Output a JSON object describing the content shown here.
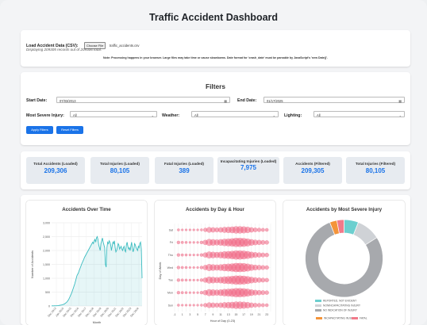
{
  "title": "Traffic Accident Dashboard",
  "load": {
    "label": "Load Accident Data (CSV):",
    "button": "Choose File",
    "filename": "traffic_accidents.csv",
    "status": "Displaying 209305 records out of 209306 total.",
    "note": "Note: Processing happens in your browser. Large files may take time or cause slowdowns. Date format for 'crash_date' must be parsable by JavaScript's 'new Date()'."
  },
  "filters": {
    "heading": "Filters",
    "start_label": "Start Date:",
    "start_value": "07/03/2013",
    "end_label": "End Date:",
    "end_value": "01/17/2025",
    "injury_label": "Most Severe Injury:",
    "injury_value": "All",
    "weather_label": "Weather:",
    "weather_value": "All",
    "lighting_label": "Lighting:",
    "lighting_value": "All",
    "apply": "Apply Filters",
    "reset": "Reset Filters"
  },
  "stats": [
    {
      "title": "Total Accidents (Loaded)",
      "value": "209,306"
    },
    {
      "title": "Total Injuries (Loaded)",
      "value": "80,105"
    },
    {
      "title": "Fatal Injuries (Loaded)",
      "value": "389"
    },
    {
      "title": "Incapacitating Injuries (Loaded)",
      "value": "7,975"
    },
    {
      "title": "Accidents (Filtered)",
      "value": "209,305"
    },
    {
      "title": "Total Injuries (Filtered)",
      "value": "80,105"
    }
  ],
  "colors": {
    "accent": "#1a73e8",
    "line": "#3bbcc0",
    "bubble": "#ef5a7a"
  },
  "chart_data": [
    {
      "type": "line",
      "title": "Accidents Over Time",
      "xlabel": "Month",
      "ylabel": "Number of Accidents",
      "ylim": [
        0,
        3000
      ],
      "yticks": [
        "0",
        "500",
        "1,000",
        "1,500",
        "2,000",
        "2,500",
        "3,000"
      ],
      "xticks": [
        "Dec 2013",
        "Jan 2015",
        "Dec 2015",
        "Dec 2016",
        "Dec 2017",
        "Dec 2018",
        "Dec 2019",
        "Dec 2020",
        "Dec 2021",
        "Dec 2022",
        "Dec 2023",
        "Dec 2024"
      ],
      "values": [
        5,
        4,
        6,
        5,
        7,
        6,
        8,
        10,
        12,
        15,
        20,
        25,
        30,
        35,
        40,
        50,
        60,
        70,
        90,
        110,
        130,
        160,
        200,
        240,
        300,
        360,
        420,
        480,
        560,
        640,
        720,
        800,
        900,
        1000,
        1100,
        1150,
        1200,
        1280,
        1350,
        1420,
        1500,
        1560,
        1620,
        1680,
        1750,
        1800,
        1850,
        1900,
        1950,
        2000,
        2050,
        2100,
        2150,
        2200,
        2250,
        2300,
        2250,
        2350,
        2400,
        2300,
        2450,
        2500,
        2400,
        2200,
        2100,
        2000,
        2250,
        2350,
        2450,
        2300,
        2200,
        2100,
        1500,
        1400,
        2100,
        2300,
        2250,
        2350,
        2300,
        2200,
        2000,
        2150,
        2300,
        2250,
        2350,
        2100,
        1950,
        2000,
        2100,
        2250,
        2200,
        2050,
        2100,
        2150,
        2050,
        2000,
        2100,
        2150,
        2000,
        1950,
        2200,
        2300,
        2150,
        2050,
        2100,
        2000,
        2150,
        2300,
        2100,
        1950,
        2050,
        2250,
        2200,
        2100,
        2050,
        2000,
        2150,
        2100,
        2250,
        2300,
        2050,
        1000
      ]
    },
    {
      "type": "scatter",
      "title": "Accidents by Day & Hour",
      "xlabel": "Hour of Day (0-23)",
      "ylabel": "Day of Week",
      "xticks": [
        "-1",
        "0",
        "1",
        "2",
        "3",
        "4",
        "5",
        "6",
        "7",
        "8",
        "9",
        "10",
        "11",
        "12",
        "13",
        "14",
        "15",
        "16",
        "17",
        "18",
        "19",
        "20",
        "21",
        "22",
        "23",
        "24"
      ],
      "days": [
        "Sat",
        "Fri",
        "Thu",
        "Wed",
        "Tue",
        "Mon",
        "Sun"
      ],
      "hour_weights": [
        0.35,
        0.3,
        0.28,
        0.25,
        0.22,
        0.25,
        0.35,
        0.55,
        0.75,
        0.7,
        0.65,
        0.7,
        0.8,
        0.85,
        0.9,
        1.0,
        1.0,
        0.95,
        0.85,
        0.7,
        0.6,
        0.55,
        0.5,
        0.45
      ]
    },
    {
      "type": "pie",
      "title": "Accidents by Most Severe Injury",
      "slices": [
        {
          "label": "REPORTED, NOT EVIDENT",
          "value": 6,
          "color": "#6ccfcf"
        },
        {
          "label": "NONINCAPACITATING INJURY",
          "value": 10,
          "color": "#cfd2d6"
        },
        {
          "label": "NO INDICATION OF INJURY",
          "value": 78,
          "color": "#a7a9ad"
        },
        {
          "label": "INCAPACITATING INJURY",
          "value": 3,
          "color": "#f4943a"
        },
        {
          "label": "FATAL",
          "value": 3,
          "color": "#f17a8a"
        }
      ]
    }
  ]
}
